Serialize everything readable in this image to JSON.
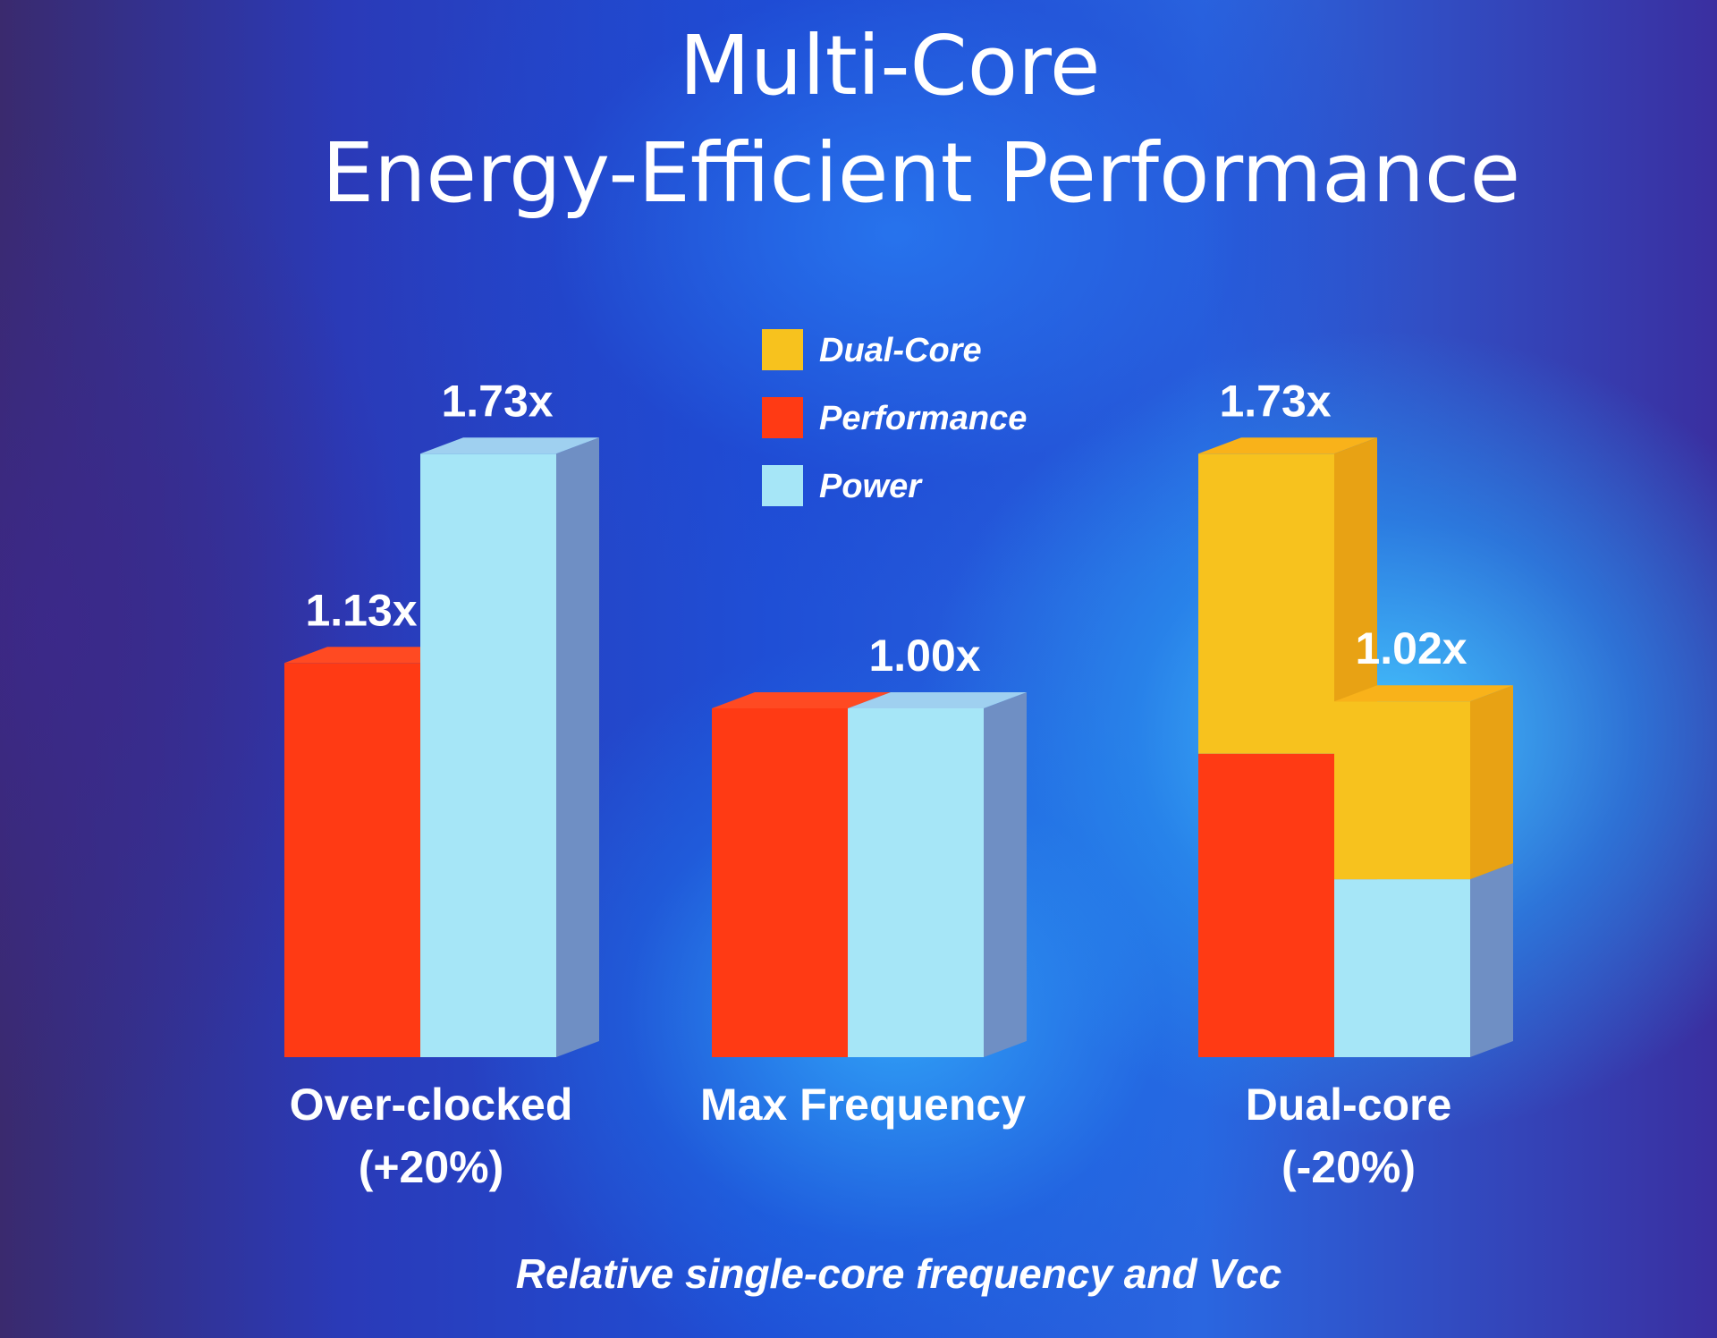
{
  "chart_data": {
    "type": "bar",
    "title": [
      "Multi-Core",
      "Energy-Efficient Performance"
    ],
    "xlabel": "Relative single-core frequency and Vcc",
    "ylabel": "",
    "ylim": [
      0,
      2.0
    ],
    "categories": [
      {
        "line1": "Over-clocked",
        "line2": "(+20%)"
      },
      {
        "line1": "Max Frequency",
        "line2": ""
      },
      {
        "line1": "Dual-core",
        "line2": "(-20%)"
      }
    ],
    "legend": [
      {
        "name": "Dual-Core",
        "color": "#f7c21e"
      },
      {
        "name": "Performance",
        "color": "#ff3a14"
      },
      {
        "name": "Power",
        "color": "#a6e6f7"
      }
    ],
    "bars": [
      {
        "category": 0,
        "series": "Performance",
        "value": 1.13,
        "label": "1.13x"
      },
      {
        "category": 0,
        "series": "Power",
        "value": 1.73,
        "label": "1.73x"
      },
      {
        "category": 1,
        "series": "Performance",
        "value": 1.0,
        "label": ""
      },
      {
        "category": 1,
        "series": "Power",
        "value": 1.0,
        "label": "1.00x"
      },
      {
        "category": 2,
        "series": "Performance",
        "value": 1.73,
        "label": "1.73x",
        "single_core_part": 0.87
      },
      {
        "category": 2,
        "series": "Power",
        "value": 1.02,
        "label": "1.02x",
        "single_core_part": 0.51
      }
    ],
    "colors": {
      "performance_front": "#ff3a14",
      "performance_side": "#c8201a",
      "performance_top": "#ff4a22",
      "power_front": "#a6e6f7",
      "power_side": "#6f8fc4",
      "power_top": "#9fd0f0",
      "dual_front": "#f7c21e",
      "dual_side": "#e8a214",
      "dual_top": "#f9b21a"
    }
  }
}
